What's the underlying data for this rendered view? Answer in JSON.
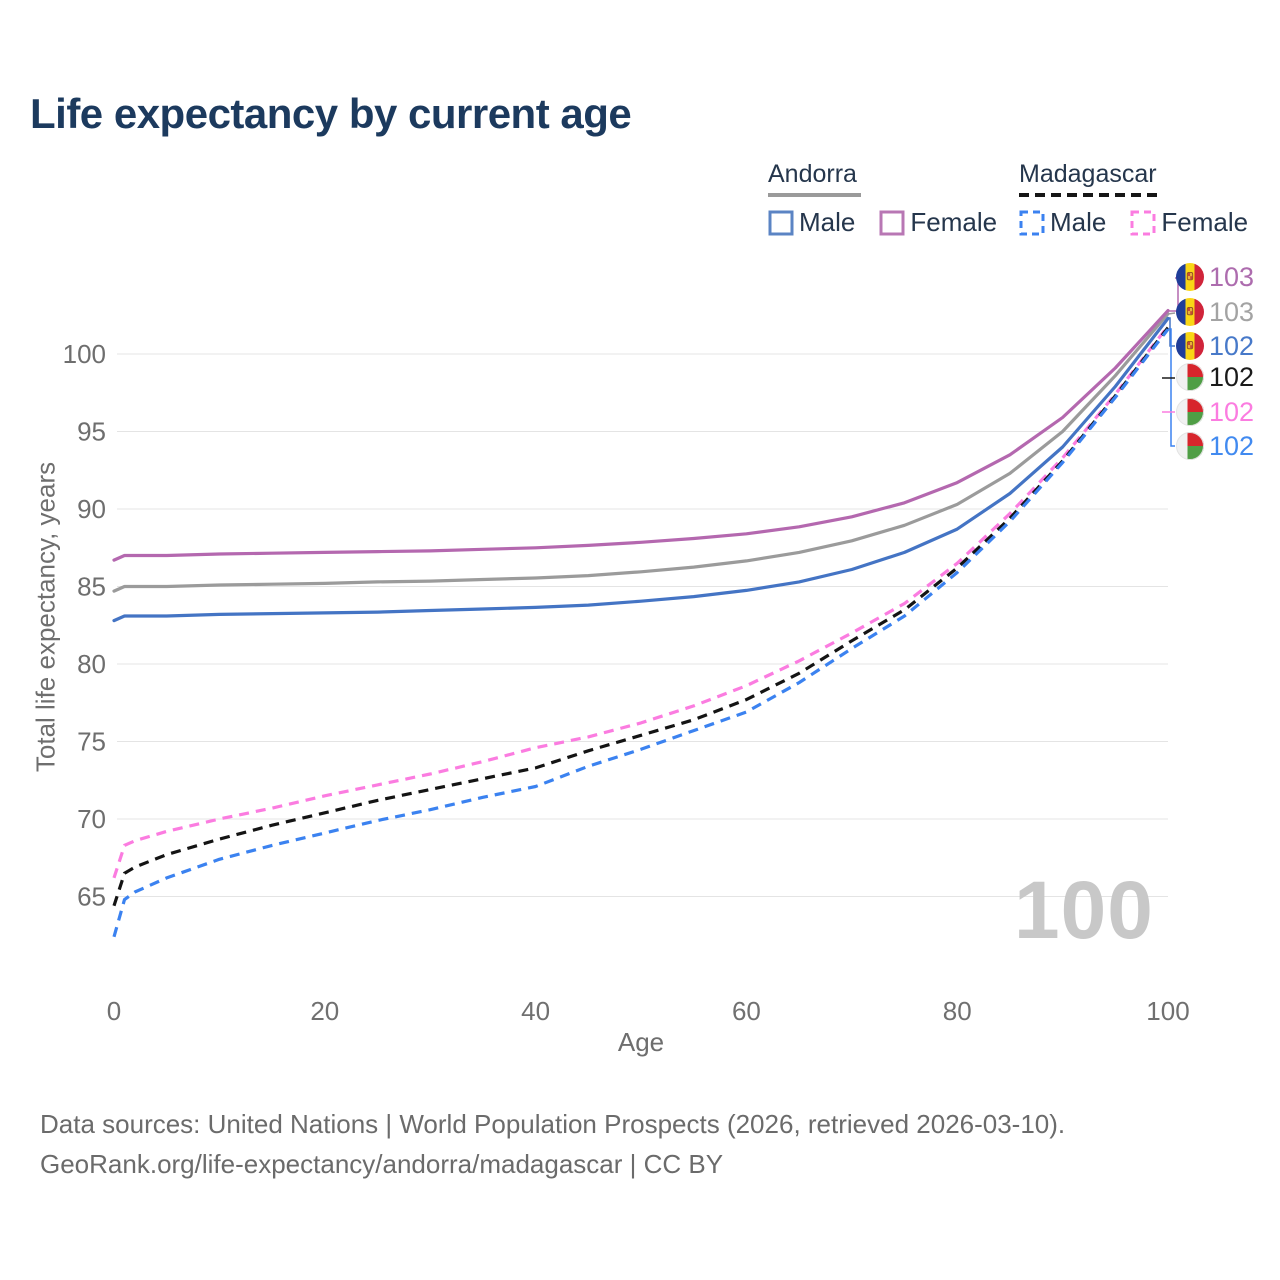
{
  "title": "Life expectancy by current age",
  "legend": {
    "groups": [
      {
        "country": "Andorra",
        "style": "solid",
        "items": [
          {
            "label": "Male",
            "color": "#4474c4"
          },
          {
            "label": "Female",
            "color": "#b468af"
          }
        ]
      },
      {
        "country": "Madagascar",
        "style": "dashed",
        "items": [
          {
            "label": "Male",
            "color": "#3b82f0"
          },
          {
            "label": "Female",
            "color": "#fb7ce0"
          }
        ]
      }
    ]
  },
  "watermark": "100",
  "footer": {
    "line1": "Data sources: United Nations | World Population Prospects (2026, retrieved 2026-03-10).",
    "line2": "GeoRank.org/life-expectancy/andorra/madagascar | CC BY"
  },
  "chart_data": {
    "type": "line",
    "title": "Life expectancy by current age",
    "xlabel": "Age",
    "ylabel": "Total life expectancy, years",
    "xlim": [
      0,
      100
    ],
    "ylim": [
      62,
      103.5
    ],
    "grid": "horizontal",
    "x_ticks": [
      "0",
      "20",
      "40",
      "60",
      "80",
      "100"
    ],
    "y_ticks": [
      "65",
      "70",
      "75",
      "80",
      "85",
      "90",
      "95",
      "100"
    ],
    "x": [
      0,
      1,
      2,
      5,
      10,
      15,
      20,
      25,
      30,
      35,
      40,
      45,
      50,
      55,
      60,
      65,
      70,
      75,
      80,
      85,
      90,
      95,
      100
    ],
    "series": [
      {
        "name": "Andorra Both",
        "country": "Andorra",
        "sex": "both",
        "color": "#9b9b9b",
        "dash": "solid",
        "values": [
          84.7,
          85.0,
          85.0,
          85.0,
          85.1,
          85.15,
          85.2,
          85.3,
          85.35,
          85.45,
          85.55,
          85.7,
          85.95,
          86.25,
          86.65,
          87.2,
          87.95,
          88.95,
          90.3,
          92.3,
          95.0,
          98.6,
          102.6
        ]
      },
      {
        "name": "Andorra Female",
        "country": "Andorra",
        "sex": "female",
        "color": "#b468af",
        "dash": "solid",
        "values": [
          86.7,
          87.0,
          87.0,
          87.0,
          87.1,
          87.15,
          87.2,
          87.25,
          87.3,
          87.4,
          87.5,
          87.65,
          87.85,
          88.1,
          88.4,
          88.85,
          89.5,
          90.4,
          91.7,
          93.5,
          95.9,
          99.1,
          102.8
        ]
      },
      {
        "name": "Andorra Male",
        "country": "Andorra",
        "sex": "male",
        "color": "#4474c4",
        "dash": "solid",
        "values": [
          82.8,
          83.1,
          83.1,
          83.1,
          83.2,
          83.25,
          83.3,
          83.35,
          83.45,
          83.55,
          83.65,
          83.8,
          84.05,
          84.35,
          84.75,
          85.3,
          86.1,
          87.2,
          88.7,
          91.0,
          94.0,
          97.9,
          102.3
        ]
      },
      {
        "name": "Madagascar Female",
        "country": "Madagascar",
        "sex": "female",
        "color": "#fb7ce0",
        "dash": "dashed",
        "values": [
          66.2,
          68.3,
          68.6,
          69.2,
          70.0,
          70.7,
          71.5,
          72.2,
          72.9,
          73.7,
          74.6,
          75.3,
          76.2,
          77.3,
          78.6,
          80.2,
          82.0,
          83.9,
          86.5,
          89.7,
          93.3,
          97.4,
          101.8
        ]
      },
      {
        "name": "Madagascar Both",
        "country": "Madagascar",
        "sex": "both",
        "color": "#141414",
        "dash": "dashed",
        "values": [
          64.4,
          66.5,
          66.9,
          67.7,
          68.7,
          69.6,
          70.4,
          71.2,
          71.9,
          72.6,
          73.3,
          74.4,
          75.4,
          76.4,
          77.7,
          79.4,
          81.5,
          83.5,
          86.2,
          89.4,
          93.1,
          97.3,
          101.7
        ]
      },
      {
        "name": "Madagascar Male",
        "country": "Madagascar",
        "sex": "male",
        "color": "#3b82f0",
        "dash": "dashed",
        "values": [
          62.4,
          64.8,
          65.3,
          66.2,
          67.4,
          68.3,
          69.1,
          69.9,
          70.6,
          71.4,
          72.1,
          73.4,
          74.5,
          75.7,
          76.9,
          78.8,
          81.0,
          83.1,
          85.9,
          89.2,
          93.0,
          97.2,
          101.6
        ]
      }
    ],
    "end_labels": [
      {
        "flag": "andorra",
        "value": "103",
        "color": "#ad6cae"
      },
      {
        "flag": "andorra",
        "value": "103",
        "color": "#a3a3a3"
      },
      {
        "flag": "andorra",
        "value": "102",
        "color": "#4779c9"
      },
      {
        "flag": "madagascar",
        "value": "102",
        "color": "#1a1a1a"
      },
      {
        "flag": "madagascar",
        "value": "102",
        "color": "#fb7ce0"
      },
      {
        "flag": "madagascar",
        "value": "102",
        "color": "#418af0"
      }
    ],
    "legend_position": "top-right"
  }
}
